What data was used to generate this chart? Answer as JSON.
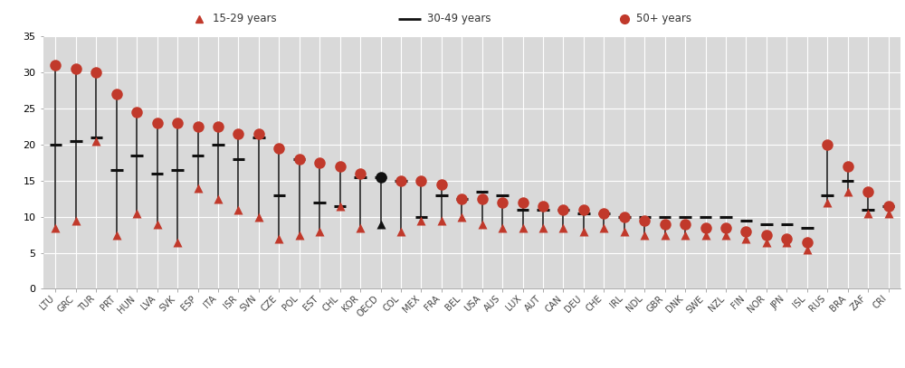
{
  "countries": [
    "LTU",
    "GRC",
    "TUR",
    "PRT",
    "HUN",
    "LVA",
    "SVK",
    "ESP",
    "ITA",
    "ISR",
    "SVN",
    "CZE",
    "POL",
    "EST",
    "CHL",
    "KOR",
    "OECD",
    "COL",
    "MEX",
    "FRA",
    "BEL",
    "USA",
    "AUS",
    "LUX",
    "AUT",
    "CAN",
    "DEU",
    "CHE",
    "IRL",
    "NDL",
    "GBR",
    "DNK",
    "SWE",
    "NZL",
    "FIN",
    "NOR",
    "JPN",
    "ISL",
    "RUS",
    "BRA",
    "ZAF",
    "CRI"
  ],
  "young": [
    8.5,
    9.5,
    20.5,
    7.5,
    10.5,
    9.0,
    6.5,
    14.0,
    12.5,
    11.0,
    10.0,
    7.0,
    7.5,
    8.0,
    11.5,
    8.5,
    9.0,
    8.0,
    9.5,
    9.5,
    10.0,
    9.0,
    8.5,
    8.5,
    8.5,
    8.5,
    8.0,
    8.5,
    8.0,
    7.5,
    7.5,
    7.5,
    7.5,
    7.5,
    7.0,
    6.5,
    6.5,
    5.5,
    12.0,
    13.5,
    10.5,
    10.5
  ],
  "middle": [
    20.0,
    20.5,
    21.0,
    16.5,
    18.5,
    16.0,
    16.5,
    18.5,
    20.0,
    18.0,
    21.0,
    13.0,
    18.0,
    12.0,
    11.5,
    15.5,
    15.5,
    15.0,
    10.0,
    13.0,
    12.5,
    13.5,
    13.0,
    11.0,
    11.0,
    11.0,
    10.5,
    10.5,
    10.0,
    10.0,
    10.0,
    10.0,
    10.0,
    10.0,
    9.5,
    9.0,
    9.0,
    8.5,
    13.0,
    15.0,
    11.0,
    11.5
  ],
  "old": [
    31.0,
    30.5,
    30.0,
    27.0,
    24.5,
    23.0,
    23.0,
    22.5,
    22.5,
    21.5,
    21.5,
    19.5,
    18.0,
    17.5,
    17.0,
    16.0,
    15.5,
    15.0,
    15.0,
    14.5,
    12.5,
    12.5,
    12.0,
    12.0,
    11.5,
    11.0,
    11.0,
    10.5,
    10.0,
    9.5,
    9.0,
    9.0,
    8.5,
    8.5,
    8.0,
    7.5,
    7.0,
    6.5,
    20.0,
    17.0,
    13.5,
    11.5
  ],
  "red_color": "#c1392b",
  "dark_color": "#111111",
  "plot_bg_color": "#d9d9d9",
  "fig_bg_color": "#ffffff",
  "legend_bg_color": "#d3d3d3",
  "ylim": [
    0,
    35
  ],
  "yticks": [
    0,
    5,
    10,
    15,
    20,
    25,
    30,
    35
  ],
  "legend_labels": [
    "15-29 years",
    "30-49 years",
    "50+ years"
  ]
}
